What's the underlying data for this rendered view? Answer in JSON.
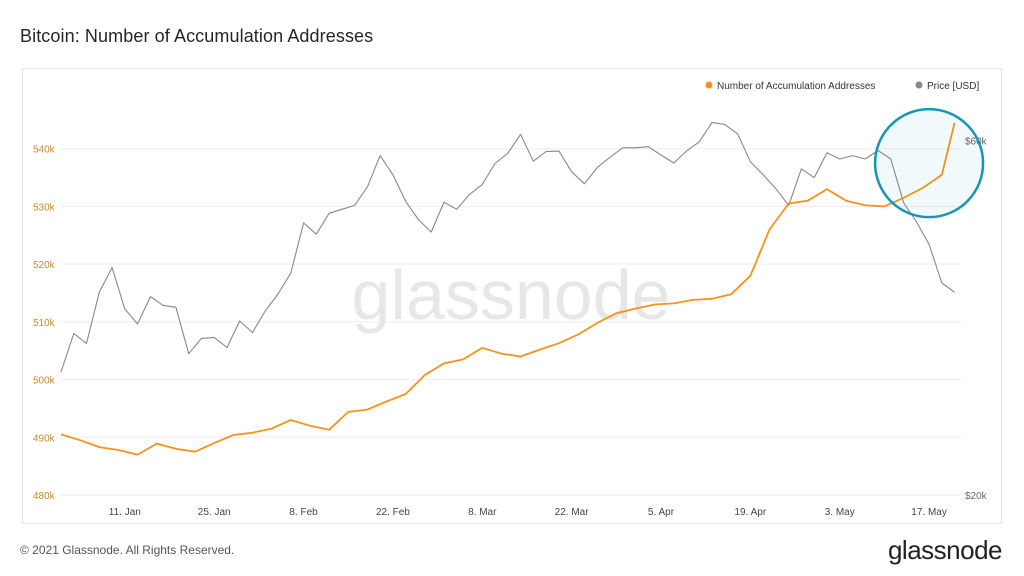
{
  "page": {
    "title": "Bitcoin: Number of Accumulation Addresses",
    "copyright": "© 2021 Glassnode. All Rights Reserved.",
    "logo": "glassnode",
    "watermark": "glassnode"
  },
  "colors": {
    "accumulation": "#f7931a",
    "price": "#888888",
    "highlight_circle": "#1a94b4",
    "axis_left_text": "#c48a2c",
    "axis_right_text": "#666666",
    "grid": "#eeeeee",
    "watermark": "#e7e7e7"
  },
  "chart_data": {
    "type": "line",
    "title": "Bitcoin: Number of Accumulation Addresses",
    "legend": [
      "Number of Accumulation Addresses",
      "Price [USD]"
    ],
    "legend_position": "top-right",
    "x_tick_labels": [
      "11. Jan",
      "25. Jan",
      "8. Feb",
      "22. Feb",
      "8. Mar",
      "22. Mar",
      "5. Apr",
      "19. Apr",
      "3. May",
      "17. May"
    ],
    "x_range": [
      "2021-01-01",
      "2021-05-22"
    ],
    "y_left": {
      "label": "",
      "range": [
        480000,
        550000
      ],
      "ticks": [
        "480k",
        "490k",
        "500k",
        "510k",
        "520k",
        "530k",
        "540k"
      ]
    },
    "y_right": {
      "label": "",
      "range": [
        20000,
        70000
      ],
      "scale": "log",
      "ticks": [
        "$20k",
        "$60k"
      ]
    },
    "grid": true,
    "series": [
      {
        "name": "Number of Accumulation Addresses",
        "axis": "left",
        "x": [
          "2021-01-01",
          "2021-01-04",
          "2021-01-07",
          "2021-01-10",
          "2021-01-13",
          "2021-01-16",
          "2021-01-19",
          "2021-01-22",
          "2021-01-25",
          "2021-01-28",
          "2021-01-31",
          "2021-02-03",
          "2021-02-06",
          "2021-02-09",
          "2021-02-12",
          "2021-02-15",
          "2021-02-18",
          "2021-02-21",
          "2021-02-24",
          "2021-02-27",
          "2021-03-02",
          "2021-03-05",
          "2021-03-08",
          "2021-03-11",
          "2021-03-14",
          "2021-03-17",
          "2021-03-20",
          "2021-03-23",
          "2021-03-26",
          "2021-03-29",
          "2021-04-01",
          "2021-04-04",
          "2021-04-07",
          "2021-04-10",
          "2021-04-13",
          "2021-04-16",
          "2021-04-19",
          "2021-04-22",
          "2021-04-25",
          "2021-04-28",
          "2021-05-01",
          "2021-05-04",
          "2021-05-07",
          "2021-05-10",
          "2021-05-13",
          "2021-05-16",
          "2021-05-19",
          "2021-05-21"
        ],
        "values": [
          490500,
          489500,
          488300,
          487800,
          487000,
          488900,
          488000,
          487500,
          489000,
          490400,
          490800,
          491500,
          493000,
          492000,
          491300,
          494400,
          494800,
          496200,
          497500,
          500800,
          502800,
          503500,
          505500,
          504500,
          504000,
          505200,
          506300,
          507800,
          509800,
          511500,
          512300,
          513000,
          513200,
          513800,
          514000,
          514800,
          518000,
          526000,
          530500,
          531000,
          533000,
          531000,
          530200,
          530000,
          531500,
          533200,
          535500,
          544500
        ]
      },
      {
        "name": "Price [USD]",
        "axis": "right",
        "x": [
          "2021-01-01",
          "2021-01-03",
          "2021-01-05",
          "2021-01-07",
          "2021-01-09",
          "2021-01-11",
          "2021-01-13",
          "2021-01-15",
          "2021-01-17",
          "2021-01-19",
          "2021-01-21",
          "2021-01-23",
          "2021-01-25",
          "2021-01-27",
          "2021-01-29",
          "2021-01-31",
          "2021-02-02",
          "2021-02-04",
          "2021-02-06",
          "2021-02-08",
          "2021-02-10",
          "2021-02-12",
          "2021-02-14",
          "2021-02-16",
          "2021-02-18",
          "2021-02-20",
          "2021-02-22",
          "2021-02-24",
          "2021-02-26",
          "2021-02-28",
          "2021-03-02",
          "2021-03-04",
          "2021-03-06",
          "2021-03-08",
          "2021-03-10",
          "2021-03-12",
          "2021-03-14",
          "2021-03-16",
          "2021-03-18",
          "2021-03-20",
          "2021-03-22",
          "2021-03-24",
          "2021-03-26",
          "2021-03-28",
          "2021-03-30",
          "2021-04-01",
          "2021-04-03",
          "2021-04-05",
          "2021-04-07",
          "2021-04-09",
          "2021-04-11",
          "2021-04-13",
          "2021-04-15",
          "2021-04-17",
          "2021-04-19",
          "2021-04-21",
          "2021-04-23",
          "2021-04-25",
          "2021-04-27",
          "2021-04-29",
          "2021-05-01",
          "2021-05-03",
          "2021-05-05",
          "2021-05-07",
          "2021-05-09",
          "2021-05-11",
          "2021-05-13",
          "2021-05-15",
          "2021-05-17",
          "2021-05-19",
          "2021-05-21"
        ],
        "values": [
          29300,
          33000,
          32000,
          37500,
          40500,
          35600,
          34000,
          37000,
          36000,
          35800,
          31000,
          32500,
          32600,
          31600,
          34300,
          33100,
          35400,
          37300,
          39800,
          46500,
          44900,
          47900,
          48500,
          49100,
          52000,
          57300,
          54000,
          49700,
          47000,
          45200,
          49600,
          48500,
          50800,
          52400,
          55900,
          57700,
          61200,
          56300,
          58000,
          58100,
          54500,
          52500,
          55200,
          57000,
          58700,
          58700,
          58900,
          57400,
          56000,
          58100,
          59800,
          63500,
          63100,
          61300,
          56200,
          54000,
          51700,
          49100,
          55000,
          53500,
          57800,
          56700,
          57300,
          56700,
          58200,
          56700,
          49500,
          46700,
          43500,
          38600,
          37500
        ]
      }
    ]
  }
}
